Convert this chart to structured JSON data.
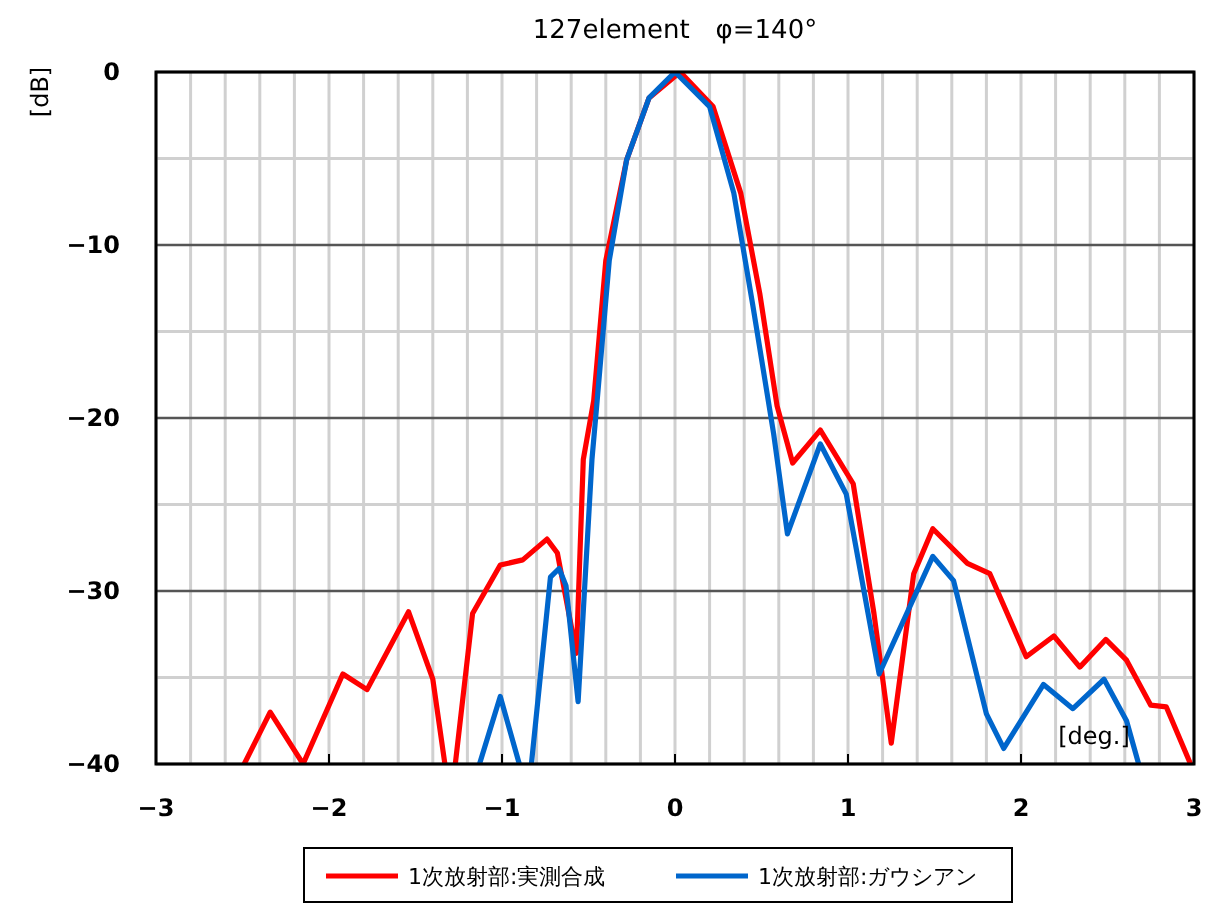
{
  "chart_data": {
    "type": "line",
    "title": "127element　φ=140°",
    "xlabel": "[deg.]",
    "ylabel": "[dB]",
    "xlim": [
      -3,
      3
    ],
    "ylim": [
      -40,
      0
    ],
    "xticks": [
      -3,
      {
        "value": -2.8,
        "label": null
      },
      {
        "value": -2.6,
        "label": null
      },
      {
        "value": -2.4,
        "label": null
      },
      {
        "value": -2.2,
        "label": null
      },
      -2,
      {
        "value": -1.8,
        "label": null
      },
      {
        "value": -1.6,
        "label": null
      },
      {
        "value": -1.4,
        "label": null
      },
      {
        "value": -1.2,
        "label": null
      },
      -1,
      {
        "value": -0.8,
        "label": null
      },
      {
        "value": -0.6,
        "label": null
      },
      {
        "value": -0.4,
        "label": null
      },
      {
        "value": -0.2,
        "label": null
      },
      0,
      {
        "value": 0.2,
        "label": null
      },
      {
        "value": 0.4,
        "label": null
      },
      {
        "value": 0.6,
        "label": null
      },
      {
        "value": 0.8,
        "label": null
      },
      1,
      {
        "value": 1.2,
        "label": null
      },
      {
        "value": 1.4,
        "label": null
      },
      {
        "value": 1.6,
        "label": null
      },
      {
        "value": 1.8,
        "label": null
      },
      2,
      {
        "value": 2.2,
        "label": null
      },
      {
        "value": 2.4,
        "label": null
      },
      {
        "value": 2.6,
        "label": null
      },
      {
        "value": 2.8,
        "label": null
      },
      3
    ],
    "yticks": [
      {
        "value": -40,
        "label": "−40"
      },
      {
        "value": -35,
        "label": null
      },
      {
        "value": -30,
        "label": "−30"
      },
      {
        "value": -25,
        "label": null
      },
      {
        "value": -20,
        "label": "−20"
      },
      {
        "value": -15,
        "label": null
      },
      {
        "value": -10,
        "label": "−10"
      },
      {
        "value": -5,
        "label": null
      },
      0
    ],
    "grid": true,
    "legend": "bottom",
    "marker": "none",
    "line_style": "solid",
    "series": [
      {
        "name": "1次放射部:実測合成",
        "color": "#ff0000",
        "x": [
          -2.49,
          -2.34,
          -2.15,
          -1.92,
          -1.78,
          -1.54,
          -1.4,
          -1.33,
          -1.3,
          -1.27,
          -1.17,
          -1.01,
          -0.88,
          -0.74,
          -0.68,
          -0.57,
          -0.53,
          -0.47,
          -0.4,
          -0.28,
          -0.15,
          0.03,
          0.22,
          0.38,
          0.49,
          0.59,
          0.68,
          0.84,
          1.03,
          1.15,
          1.25,
          1.38,
          1.49,
          1.69,
          1.82,
          2.03,
          2.19,
          2.34,
          2.49,
          2.61,
          2.75,
          2.84,
          2.98
        ],
        "values": [
          -40,
          -37,
          -40,
          -34.8,
          -35.7,
          -31.2,
          -35.1,
          -40,
          null,
          -40,
          -31.3,
          -28.5,
          -28.2,
          -27,
          -27.8,
          -33.6,
          -22.4,
          -19,
          -10.9,
          -5.1,
          -1.5,
          0,
          -2,
          -7,
          -12.8,
          -19.3,
          -22.6,
          -20.7,
          -23.8,
          -31.3,
          -38.8,
          -29,
          -26.4,
          -28.4,
          -29,
          -33.8,
          -32.6,
          -34.4,
          -32.8,
          -34,
          -36.6,
          -36.7,
          -40
        ]
      },
      {
        "name": "1次放射部:ガウシアン",
        "color": "#0066cc",
        "x": [
          -1.13,
          -1.01,
          -0.9,
          -0.86,
          -0.83,
          -0.72,
          -0.67,
          -0.63,
          -0.56,
          -0.48,
          -0.45,
          -0.38,
          -0.28,
          -0.15,
          0,
          0.2,
          0.34,
          0.45,
          0.57,
          0.65,
          0.84,
          0.99,
          1.18,
          1.49,
          1.61,
          1.8,
          1.9,
          2.13,
          2.3,
          2.48,
          2.61,
          2.68
        ],
        "values": [
          -40,
          -36.1,
          -40,
          null,
          -40,
          -29.2,
          -28.7,
          -29.7,
          -36.4,
          -22.4,
          -19,
          -10.9,
          -5.1,
          -1.5,
          0,
          -2,
          -7,
          -13.5,
          -20.9,
          -26.7,
          -21.5,
          -24.4,
          -34.8,
          -28,
          -29.4,
          -37.1,
          -39.1,
          -35.4,
          -36.8,
          -35.1,
          -37.5,
          -40
        ]
      }
    ]
  }
}
